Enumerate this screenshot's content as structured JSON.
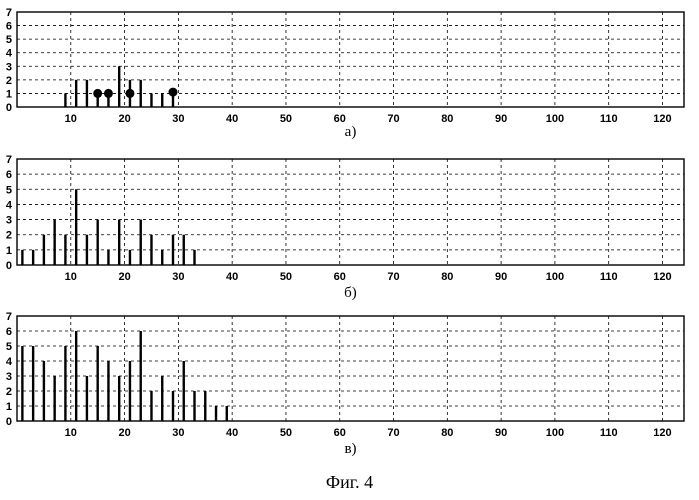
{
  "figure_caption": "Фиг. 4",
  "chart_data": [
    {
      "type": "bar",
      "panel_label": "а)",
      "xlim": [
        0,
        124
      ],
      "ylim": [
        0,
        7
      ],
      "xticks": [
        10,
        20,
        30,
        40,
        50,
        60,
        70,
        80,
        90,
        100,
        110,
        120
      ],
      "yticks": [
        0,
        1,
        2,
        3,
        4,
        5,
        6,
        7
      ],
      "grid": true,
      "x": [
        9,
        11,
        13,
        15,
        17,
        19,
        21,
        23,
        25,
        27,
        29
      ],
      "values": [
        1,
        2,
        2,
        1,
        1,
        3,
        2,
        2,
        1,
        1,
        1
      ],
      "markers": {
        "x": [
          15,
          17,
          21,
          29
        ],
        "y": [
          1,
          1,
          1,
          1.1
        ]
      }
    },
    {
      "type": "bar",
      "panel_label": "б)",
      "xlim": [
        0,
        124
      ],
      "ylim": [
        0,
        7
      ],
      "xticks": [
        10,
        20,
        30,
        40,
        50,
        60,
        70,
        80,
        90,
        100,
        110,
        120
      ],
      "yticks": [
        0,
        1,
        2,
        3,
        4,
        5,
        6,
        7
      ],
      "grid": true,
      "x": [
        1,
        3,
        5,
        7,
        9,
        11,
        13,
        15,
        17,
        19,
        21,
        23,
        25,
        27,
        29,
        31,
        33
      ],
      "values": [
        1,
        1,
        2,
        3,
        2,
        5,
        2,
        3,
        1,
        3,
        1,
        3,
        2,
        1,
        2,
        2,
        1
      ]
    },
    {
      "type": "bar",
      "panel_label": "в)",
      "xlim": [
        0,
        124
      ],
      "ylim": [
        0,
        7
      ],
      "xticks": [
        10,
        20,
        30,
        40,
        50,
        60,
        70,
        80,
        90,
        100,
        110,
        120
      ],
      "yticks": [
        0,
        1,
        2,
        3,
        4,
        5,
        6,
        7
      ],
      "grid": true,
      "x": [
        1,
        3,
        5,
        7,
        9,
        11,
        13,
        15,
        17,
        19,
        21,
        23,
        25,
        27,
        29,
        31,
        33,
        35,
        37,
        39
      ],
      "values": [
        5,
        5,
        4,
        3,
        5,
        6,
        3,
        5,
        4,
        3,
        4,
        6,
        2,
        3,
        2,
        4,
        2,
        2,
        1,
        1
      ]
    }
  ]
}
